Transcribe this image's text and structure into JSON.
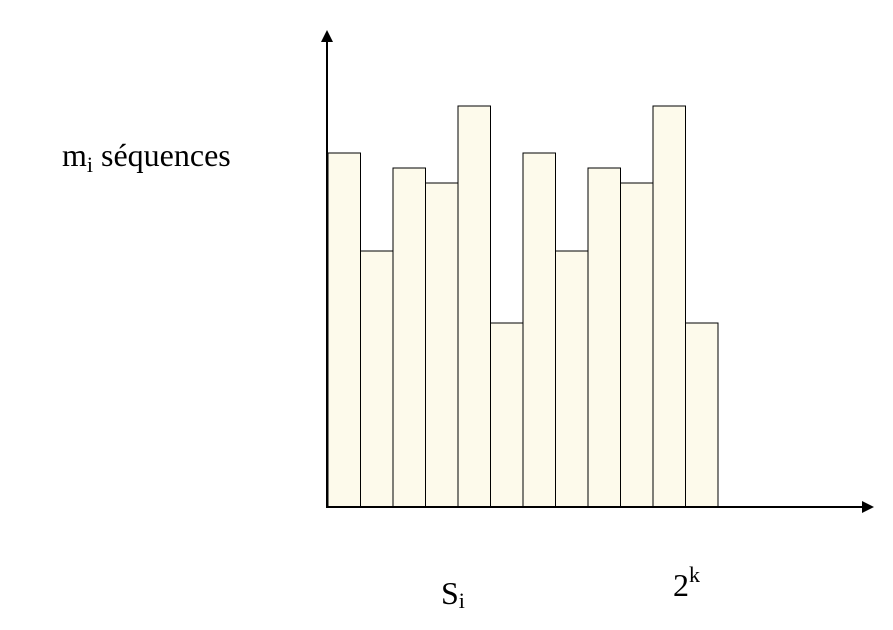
{
  "chart_data": {
    "type": "bar",
    "ylabel": {
      "text": "m",
      "subscript": "i",
      "after": " séquences"
    },
    "xlabel": {
      "text": "S",
      "subscript": "i"
    },
    "annotation": {
      "text": "2",
      "superscript": "k"
    },
    "categories": [
      null,
      null,
      null,
      null,
      null,
      null,
      null,
      null,
      null,
      null,
      null,
      null
    ],
    "values": [
      354,
      256,
      339,
      324,
      401,
      184,
      354,
      256,
      339,
      324,
      401,
      184
    ],
    "color": "#fdfaeb",
    "ylim": [
      0,
      477
    ]
  }
}
